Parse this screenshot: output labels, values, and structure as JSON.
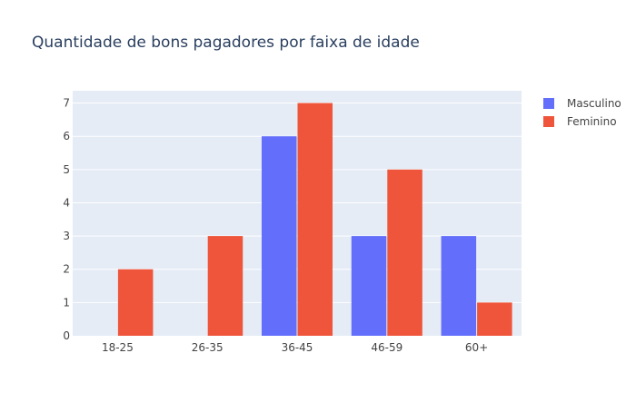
{
  "chart_data": {
    "type": "bar",
    "title": "Quantidade de bons pagadores por faixa de idade",
    "categories": [
      "18-25",
      "26-35",
      "36-45",
      "46-59",
      "60+"
    ],
    "series": [
      {
        "name": "Masculino",
        "values": [
          0,
          0,
          6,
          3,
          3
        ],
        "color": "#636efa"
      },
      {
        "name": "Feminino",
        "values": [
          2,
          3,
          7,
          5,
          1
        ],
        "color": "#ef553b"
      }
    ],
    "yticks": [
      0,
      1,
      2,
      3,
      4,
      5,
      6,
      7
    ],
    "ylim": [
      0,
      7.37
    ],
    "grid": true,
    "legend": "top-right",
    "plot_bgcolor": "#e5ecf6",
    "gridcolor": "#ffffff",
    "text_color": "#444444",
    "title_color": "#2a3f5f"
  }
}
